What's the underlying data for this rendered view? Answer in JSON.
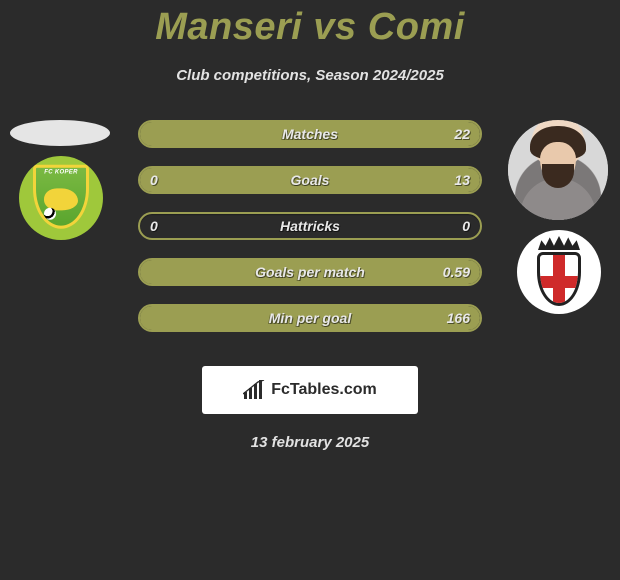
{
  "title": "Manseri vs Comi",
  "subtitle": "Club competitions, Season 2024/2025",
  "date": "13 february 2025",
  "branding": {
    "text": "FcTables.com"
  },
  "left": {
    "player_name": "Manseri",
    "team_name": "FC Koper",
    "team_colors": {
      "shield_from": "#7ab942",
      "shield_to": "#5aa52e",
      "border": "#f2d43a",
      "bg": "#9fc83b"
    }
  },
  "right": {
    "player_name": "Comi",
    "team_name": "Pro Vercelli",
    "team_colors": {
      "shield_border": "#222222",
      "cross": "#cf2a2a",
      "bg": "#ffffff"
    }
  },
  "bars": {
    "track_color": "transparent",
    "border_color": "#9b9e52",
    "fill_color": "#9b9e52",
    "label_color": "#e8e8e8",
    "rows": [
      {
        "label": "Matches",
        "left_value": "",
        "right_value": "22",
        "left_pct": 0,
        "right_pct": 100
      },
      {
        "label": "Goals",
        "left_value": "0",
        "right_value": "13",
        "left_pct": 0,
        "right_pct": 100
      },
      {
        "label": "Hattricks",
        "left_value": "0",
        "right_value": "0",
        "left_pct": 0,
        "right_pct": 0
      },
      {
        "label": "Goals per match",
        "left_value": "",
        "right_value": "0.59",
        "left_pct": 0,
        "right_pct": 100
      },
      {
        "label": "Min per goal",
        "left_value": "",
        "right_value": "166",
        "left_pct": 0,
        "right_pct": 100
      }
    ]
  },
  "colors": {
    "background": "#2b2b2b",
    "title": "#9b9e52",
    "subtitle": "#e2e2e2",
    "date": "#e2e2e2",
    "branding_bg": "#ffffff",
    "branding_text": "#2b2b2b"
  }
}
